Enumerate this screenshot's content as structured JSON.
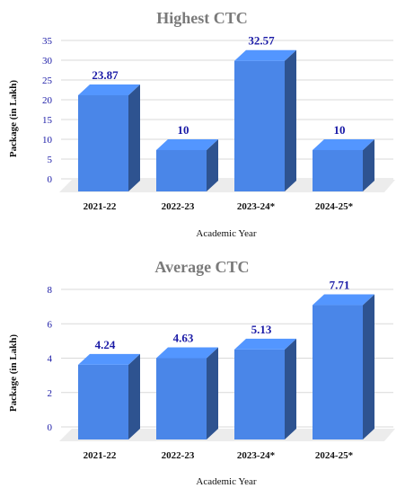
{
  "chart_data": [
    {
      "type": "bar",
      "title": "Highest CTC",
      "xlabel": "Academic Year",
      "ylabel": "Package (in Lakh)",
      "categories": [
        "2021-22",
        "2022-23",
        "2023-24*",
        "2024-25*"
      ],
      "values": [
        23.87,
        10,
        32.57,
        10
      ],
      "value_labels": [
        "23.87",
        "10",
        "32.57",
        "10"
      ],
      "yticks": [
        "0",
        "5",
        "10",
        "15",
        "20",
        "25",
        "30",
        "35"
      ],
      "ylim": [
        0,
        35
      ],
      "grid": true,
      "legend": "none",
      "bar_color": "#4a86e8"
    },
    {
      "type": "bar",
      "title": "Average CTC",
      "xlabel": "Academic Year",
      "ylabel": "Package (in Lakh)",
      "categories": [
        "2021-22",
        "2022-23",
        "2023-24*",
        "2024-25*"
      ],
      "values": [
        4.24,
        4.63,
        5.13,
        7.71
      ],
      "value_labels": [
        "4.24",
        "4.63",
        "5.13",
        "7.71"
      ],
      "yticks": [
        "0",
        "2",
        "4",
        "6",
        "8"
      ],
      "ylim": [
        0,
        8
      ],
      "grid": true,
      "legend": "none",
      "bar_color": "#4a86e8"
    }
  ]
}
